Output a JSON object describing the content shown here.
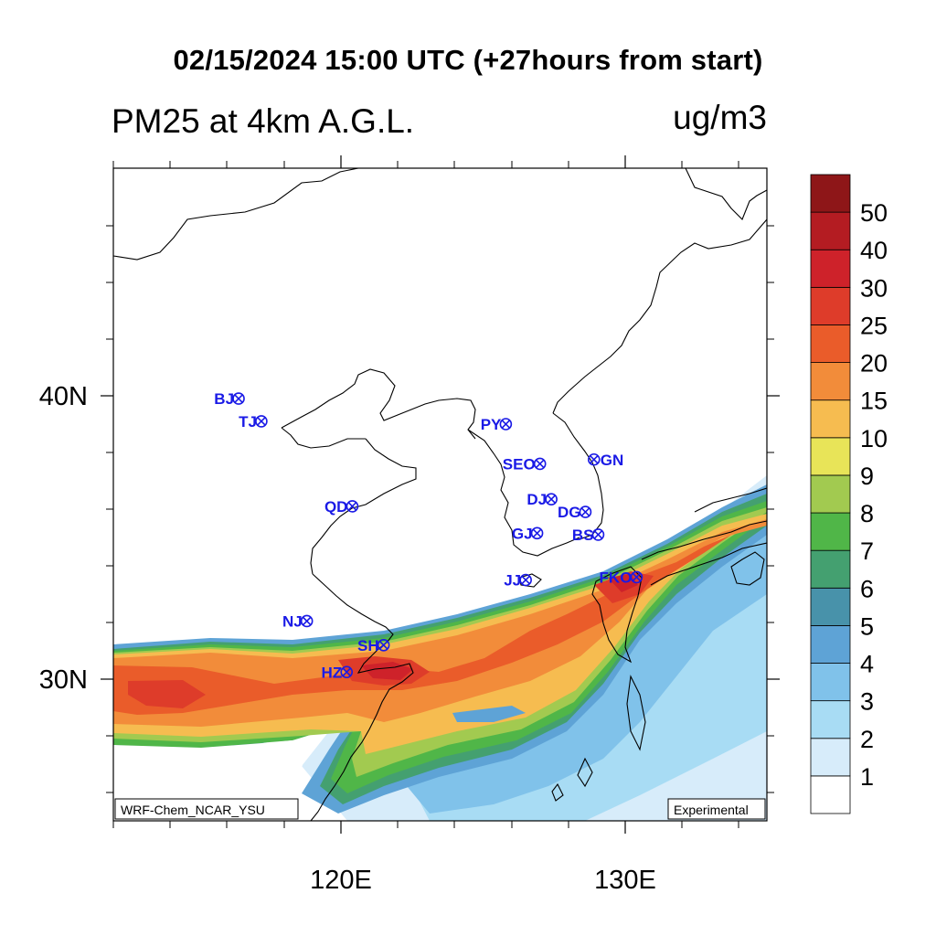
{
  "title": "02/15/2024 15:00 UTC (+27hours from start)",
  "variable": "PM25 at 4km A.G.L.",
  "units": "ug/m3",
  "map": {
    "lon_range": [
      112,
      135
    ],
    "lat_range": [
      25,
      47.5
    ],
    "lon_tick_labels": [
      "120E",
      "130E"
    ],
    "lat_tick_labels": [
      "40N",
      "30N"
    ]
  },
  "colorbar": {
    "labels": [
      "1",
      "2",
      "3",
      "4",
      "5",
      "6",
      "7",
      "8",
      "9",
      "10",
      "15",
      "20",
      "25",
      "30",
      "40",
      "50"
    ],
    "colors": [
      "#ffffff",
      "#d7ecfa",
      "#a8dcf4",
      "#80c2ea",
      "#5ea3d6",
      "#4892aa",
      "#44a070",
      "#50b648",
      "#a2ca50",
      "#e8e458",
      "#f6bc50",
      "#f28c3a",
      "#ea5c2a",
      "#de3c2a",
      "#ce222a",
      "#b41c22",
      "#8e1618"
    ]
  },
  "cities": [
    {
      "code": "BJ",
      "lon": 116.4,
      "lat": 39.9
    },
    {
      "code": "TJ",
      "lon": 117.2,
      "lat": 39.1
    },
    {
      "code": "PY",
      "lon": 125.8,
      "lat": 39.0
    },
    {
      "code": "SEO",
      "lon": 127.0,
      "lat": 37.6
    },
    {
      "code": "GN",
      "lon": 128.9,
      "lat": 37.75
    },
    {
      "code": "QD",
      "lon": 120.4,
      "lat": 36.1
    },
    {
      "code": "DJ",
      "lon": 127.4,
      "lat": 36.35
    },
    {
      "code": "DG",
      "lon": 128.6,
      "lat": 35.9
    },
    {
      "code": "GJ",
      "lon": 126.9,
      "lat": 35.15
    },
    {
      "code": "BS",
      "lon": 129.05,
      "lat": 35.1
    },
    {
      "code": "JJ",
      "lon": 126.5,
      "lat": 33.5
    },
    {
      "code": "FKO",
      "lon": 130.4,
      "lat": 33.6
    },
    {
      "code": "NJ",
      "lon": 118.8,
      "lat": 32.05
    },
    {
      "code": "SH",
      "lon": 121.5,
      "lat": 31.2
    },
    {
      "code": "HZ",
      "lon": 120.2,
      "lat": 30.25
    }
  ],
  "footer": {
    "left": "WRF-Chem_NCAR_YSU",
    "right": "Experimental"
  }
}
